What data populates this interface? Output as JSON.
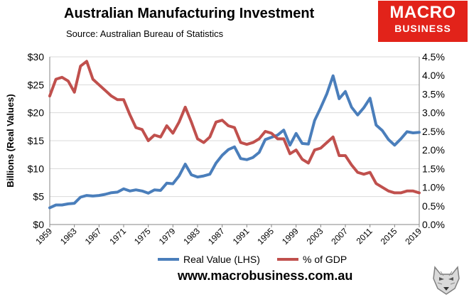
{
  "header": {
    "title": "Australian Manufacturing Investment",
    "subtitle": "Source: Australian Bureau of Statistics"
  },
  "logo": {
    "line1": "MACRO",
    "line2": "BUSINESS",
    "color": "#e2231a"
  },
  "footer": {
    "url": "www.macrobusiness.com.au",
    "mascot_icon": "wolf-head-icon"
  },
  "chart_data": {
    "type": "line",
    "title": "Australian Manufacturing Investment",
    "ylabel": "Billions (Real Values)",
    "y2label": "",
    "xlabel": "",
    "xlim": [
      1959,
      2019
    ],
    "x_ticks": [
      1959,
      1963,
      1967,
      1971,
      1975,
      1979,
      1983,
      1987,
      1991,
      1995,
      1999,
      2003,
      2007,
      2011,
      2015,
      2019
    ],
    "ylim": [
      0,
      30
    ],
    "y_ticks": [
      0,
      5,
      10,
      15,
      20,
      25,
      30
    ],
    "y_tick_labels": [
      "$0",
      "$5",
      "$10",
      "$15",
      "$20",
      "$25",
      "$30"
    ],
    "y2lim": [
      0,
      4.5
    ],
    "y2_ticks": [
      0,
      0.5,
      1,
      1.5,
      2,
      2.5,
      3,
      3.5,
      4,
      4.5
    ],
    "y2_tick_labels": [
      "0.0%",
      "0.5%",
      "1.0%",
      "1.5%",
      "2.0%",
      "2.5%",
      "3.0%",
      "3.5%",
      "4.0%",
      "4.5%"
    ],
    "grid": true,
    "legend_position": "bottom",
    "series": [
      {
        "name": "Real Value (LHS)",
        "axis": "left",
        "color": "#4a7ebb",
        "x": [
          1959,
          1960,
          1961,
          1962,
          1963,
          1964,
          1965,
          1966,
          1967,
          1968,
          1969,
          1970,
          1971,
          1972,
          1973,
          1974,
          1975,
          1976,
          1977,
          1978,
          1979,
          1980,
          1981,
          1982,
          1983,
          1984,
          1985,
          1986,
          1987,
          1988,
          1989,
          1990,
          1991,
          1992,
          1993,
          1994,
          1995,
          1996,
          1997,
          1998,
          1999,
          2000,
          2001,
          2002,
          2003,
          2004,
          2005,
          2006,
          2007,
          2008,
          2009,
          2010,
          2011,
          2012,
          2013,
          2014,
          2015,
          2016,
          2017,
          2018,
          2019
        ],
        "values": [
          3.0,
          3.5,
          3.5,
          3.7,
          3.8,
          4.9,
          5.2,
          5.1,
          5.2,
          5.4,
          5.7,
          5.8,
          6.4,
          6.0,
          6.2,
          6.0,
          5.6,
          6.2,
          6.1,
          7.4,
          7.3,
          8.7,
          10.8,
          8.9,
          8.5,
          8.7,
          9.0,
          11.0,
          12.4,
          13.4,
          13.9,
          11.8,
          11.6,
          12.0,
          12.9,
          15.2,
          15.6,
          16.0,
          16.9,
          14.2,
          16.3,
          14.5,
          14.4,
          18.6,
          20.9,
          23.4,
          26.6,
          22.5,
          23.8,
          21.0,
          19.6,
          20.9,
          22.6,
          17.8,
          16.8,
          15.2,
          14.2,
          15.3,
          16.6,
          16.4,
          16.5
        ]
      },
      {
        "name": "% of GDP",
        "axis": "right",
        "color": "#c0504d",
        "x": [
          1959,
          1960,
          1961,
          1962,
          1963,
          1964,
          1965,
          1966,
          1967,
          1968,
          1969,
          1970,
          1971,
          1972,
          1973,
          1974,
          1975,
          1976,
          1977,
          1978,
          1979,
          1980,
          1981,
          1982,
          1983,
          1984,
          1985,
          1986,
          1987,
          1988,
          1989,
          1990,
          1991,
          1992,
          1993,
          1994,
          1995,
          1996,
          1997,
          1998,
          1999,
          2000,
          2001,
          2002,
          2003,
          2004,
          2005,
          2006,
          2007,
          2008,
          2009,
          2010,
          2011,
          2012,
          2013,
          2014,
          2015,
          2016,
          2017,
          2018,
          2019
        ],
        "values": [
          3.45,
          3.9,
          3.95,
          3.85,
          3.55,
          4.25,
          4.38,
          3.9,
          3.75,
          3.6,
          3.45,
          3.35,
          3.35,
          2.95,
          2.6,
          2.55,
          2.25,
          2.4,
          2.35,
          2.65,
          2.45,
          2.75,
          3.15,
          2.75,
          2.3,
          2.2,
          2.35,
          2.75,
          2.8,
          2.65,
          2.6,
          2.2,
          2.15,
          2.2,
          2.3,
          2.5,
          2.45,
          2.3,
          2.3,
          1.9,
          2.0,
          1.75,
          1.65,
          2.0,
          2.05,
          2.2,
          2.35,
          1.85,
          1.85,
          1.6,
          1.4,
          1.35,
          1.4,
          1.1,
          1.0,
          0.9,
          0.85,
          0.85,
          0.9,
          0.9,
          0.85
        ]
      }
    ]
  }
}
